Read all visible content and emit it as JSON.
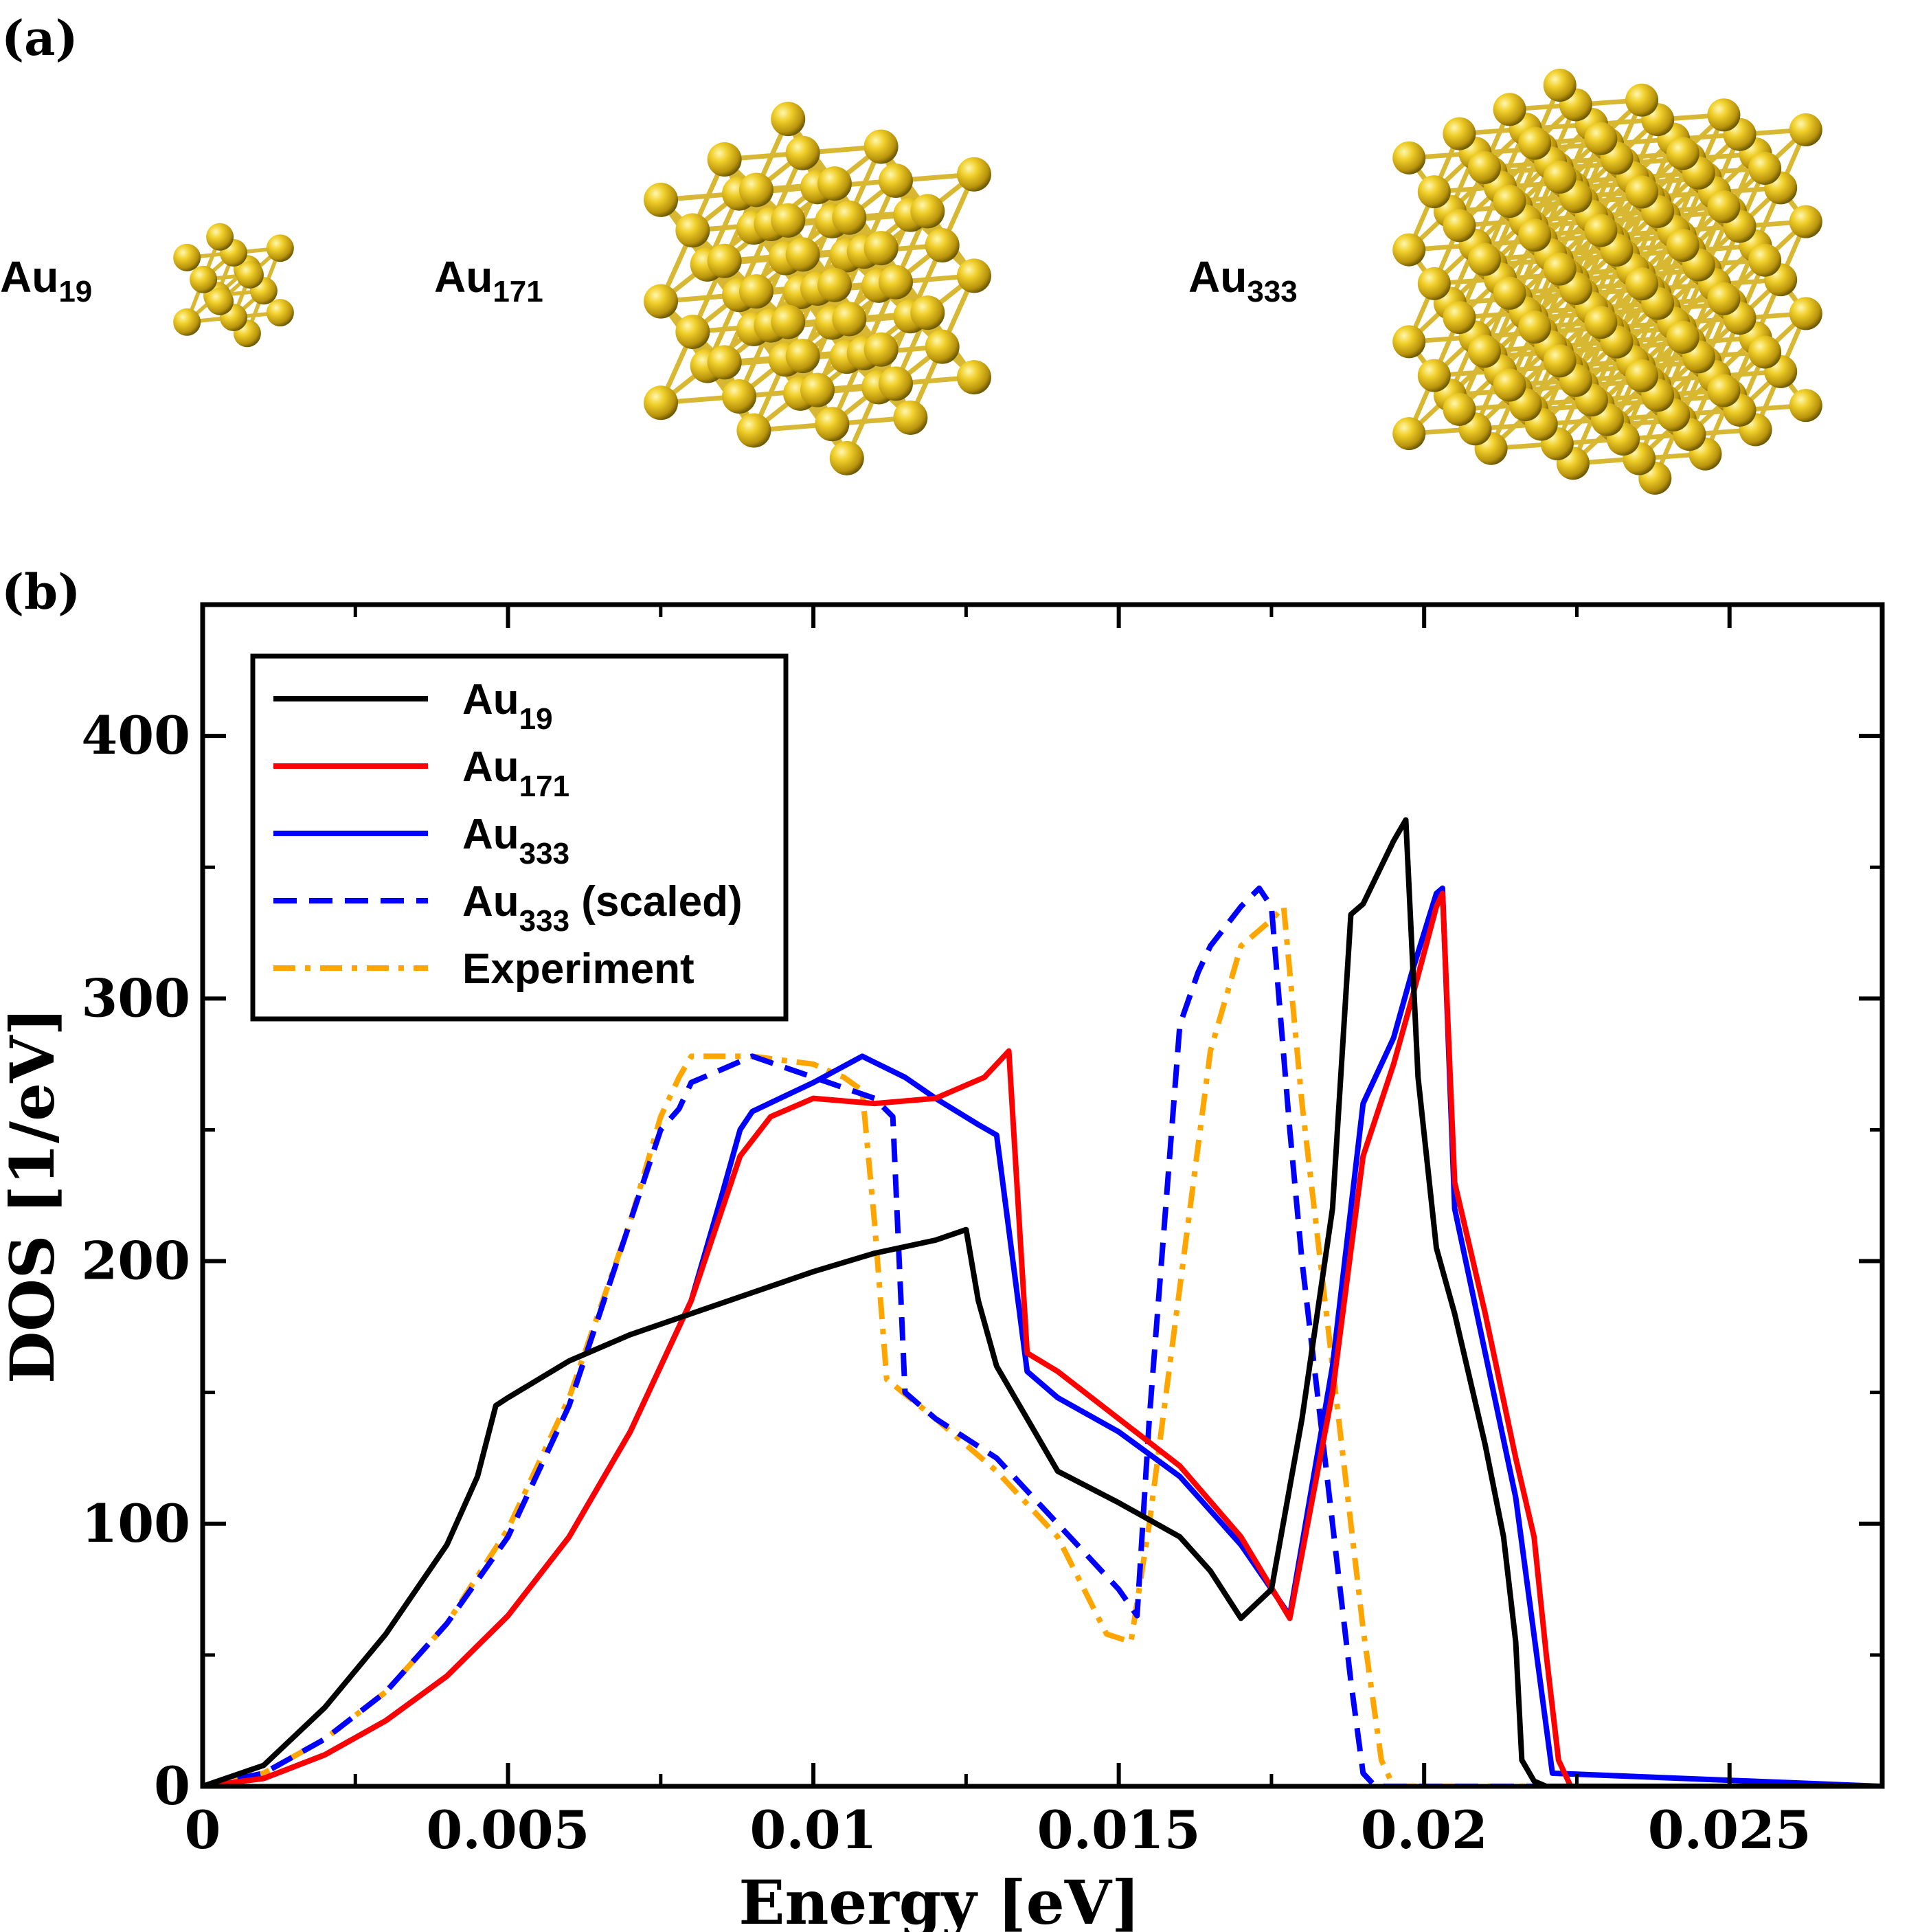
{
  "panel_labels": {
    "a": "(a)",
    "b": "(b)"
  },
  "clusters": [
    {
      "name": "Au",
      "sub": "19"
    },
    {
      "name": "Au",
      "sub": "171"
    },
    {
      "name": "Au",
      "sub": "333"
    }
  ],
  "colors": {
    "gold_light": "#f5e06a",
    "gold": "#d4b01c",
    "gold_dark": "#7a6405",
    "Au19": "#000000",
    "Au171": "#ff0000",
    "Au333": "#0000ff",
    "Au333_scaled": "#0000ff",
    "Experiment": "#ffa500"
  },
  "chart_data": {
    "type": "line",
    "xlabel": "Energy [eV]",
    "ylabel": "DOS [1/eV]",
    "xlim": [
      0,
      0.0275
    ],
    "ylim": [
      0,
      450
    ],
    "xticks": [
      0,
      0.005,
      0.01,
      0.015,
      0.02,
      0.025
    ],
    "xtick_labels": [
      "0",
      "0.005",
      "0.01",
      "0.015",
      "0.02",
      "0.025"
    ],
    "yticks": [
      0,
      100,
      200,
      300,
      400
    ],
    "ytick_labels": [
      "0",
      "100",
      "200",
      "300",
      "400"
    ],
    "legend": {
      "position": "top-left"
    },
    "series": [
      {
        "name": "Au",
        "sub": "19",
        "suffix": "",
        "style": "solid",
        "color": "#000000",
        "x": [
          0,
          0.001,
          0.002,
          0.003,
          0.004,
          0.0045,
          0.0048,
          0.005,
          0.006,
          0.007,
          0.008,
          0.009,
          0.01,
          0.011,
          0.012,
          0.0125,
          0.0127,
          0.013,
          0.0135,
          0.014,
          0.015,
          0.016,
          0.0165,
          0.017,
          0.0175,
          0.018,
          0.0185,
          0.0188,
          0.019,
          0.0195,
          0.0197,
          0.0199,
          0.0202,
          0.0205,
          0.021,
          0.0213,
          0.0215,
          0.0216,
          0.0218,
          0.022,
          0.0275
        ],
        "y": [
          0,
          8,
          30,
          58,
          92,
          118,
          145,
          148,
          162,
          172,
          180,
          188,
          196,
          203,
          208,
          212,
          185,
          160,
          140,
          120,
          108,
          95,
          82,
          64,
          75,
          140,
          220,
          332,
          336,
          360,
          368,
          270,
          205,
          180,
          130,
          95,
          55,
          10,
          2,
          0,
          0
        ]
      },
      {
        "name": "Au",
        "sub": "171",
        "suffix": "",
        "style": "solid",
        "color": "#ff0000",
        "x": [
          0,
          0.001,
          0.002,
          0.003,
          0.004,
          0.005,
          0.006,
          0.007,
          0.008,
          0.0088,
          0.0093,
          0.01,
          0.011,
          0.012,
          0.0128,
          0.0132,
          0.0135,
          0.014,
          0.015,
          0.016,
          0.017,
          0.0178,
          0.0185,
          0.019,
          0.0195,
          0.0198,
          0.0202,
          0.0203,
          0.0205,
          0.021,
          0.0215,
          0.0218,
          0.022,
          0.0222,
          0.0224,
          0.0275
        ],
        "y": [
          0,
          3,
          12,
          25,
          42,
          65,
          95,
          135,
          185,
          240,
          255,
          262,
          260,
          262,
          270,
          280,
          165,
          158,
          140,
          122,
          95,
          64,
          150,
          240,
          275,
          300,
          335,
          340,
          230,
          180,
          125,
          95,
          50,
          10,
          0,
          0
        ]
      },
      {
        "name": "Au",
        "sub": "333",
        "suffix": "",
        "style": "solid",
        "color": "#0000ff",
        "x": [
          0,
          0.001,
          0.002,
          0.003,
          0.004,
          0.005,
          0.006,
          0.007,
          0.008,
          0.0085,
          0.0088,
          0.009,
          0.01,
          0.0108,
          0.0115,
          0.012,
          0.0127,
          0.013,
          0.0135,
          0.014,
          0.015,
          0.016,
          0.017,
          0.0178,
          0.0185,
          0.019,
          0.0195,
          0.0198,
          0.0202,
          0.0203,
          0.0205,
          0.021,
          0.0215,
          0.0217,
          0.0219,
          0.0221,
          0.0275
        ],
        "y": [
          0,
          3,
          12,
          25,
          42,
          65,
          95,
          135,
          185,
          225,
          250,
          257,
          268,
          278,
          270,
          262,
          252,
          248,
          158,
          148,
          135,
          118,
          92,
          65,
          160,
          260,
          285,
          310,
          340,
          342,
          220,
          165,
          110,
          75,
          40,
          5,
          0
        ]
      },
      {
        "name": "Au",
        "sub": "333",
        "suffix": " (scaled)",
        "style": "dashed",
        "color": "#0000ff",
        "x": [
          0,
          0.001,
          0.002,
          0.003,
          0.004,
          0.005,
          0.006,
          0.007,
          0.0075,
          0.0078,
          0.008,
          0.009,
          0.01,
          0.011,
          0.0113,
          0.0115,
          0.012,
          0.013,
          0.014,
          0.015,
          0.0153,
          0.0155,
          0.0158,
          0.016,
          0.0163,
          0.0165,
          0.017,
          0.0173,
          0.0175,
          0.0178,
          0.018,
          0.0185,
          0.0188,
          0.019,
          0.0192,
          0.0275
        ],
        "y": [
          0,
          5,
          18,
          36,
          62,
          95,
          145,
          215,
          250,
          258,
          268,
          278,
          270,
          262,
          255,
          150,
          140,
          125,
          100,
          75,
          65,
          140,
          230,
          290,
          310,
          320,
          335,
          342,
          335,
          250,
          200,
          100,
          40,
          5,
          0,
          0
        ]
      },
      {
        "name": "Experiment",
        "sub": "",
        "suffix": "",
        "style": "dashdot",
        "color": "#ffa500",
        "x": [
          0,
          0.001,
          0.002,
          0.003,
          0.004,
          0.005,
          0.006,
          0.007,
          0.0075,
          0.0078,
          0.008,
          0.009,
          0.01,
          0.0105,
          0.0108,
          0.011,
          0.0112,
          0.012,
          0.013,
          0.014,
          0.0148,
          0.0152,
          0.0155,
          0.016,
          0.0165,
          0.017,
          0.0175,
          0.0177,
          0.018,
          0.0185,
          0.019,
          0.0193,
          0.0195,
          0.0275
        ],
        "y": [
          0,
          5,
          18,
          36,
          62,
          98,
          148,
          215,
          255,
          270,
          278,
          278,
          275,
          270,
          265,
          215,
          155,
          140,
          120,
          95,
          58,
          55,
          100,
          190,
          280,
          320,
          330,
          335,
          260,
          160,
          60,
          10,
          0,
          0
        ]
      }
    ]
  }
}
